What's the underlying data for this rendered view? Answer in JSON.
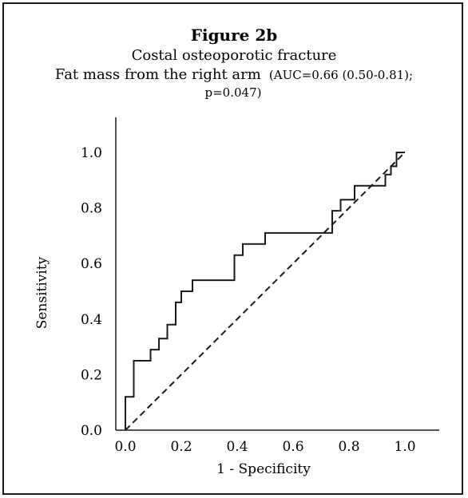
{
  "chart_data": {
    "type": "line",
    "title": "Figure 2b",
    "subtitle": "Costal osteoporotic fracture",
    "subtitle2_main": "Fat mass from the right arm",
    "subtitle2_stats_a": "(AUC=0.66 (0.50-0.81);",
    "subtitle2_stats_b": "p=0.047)",
    "xlabel": "1 - Specificity",
    "ylabel": "Sensitivity",
    "xlim": [
      0,
      1
    ],
    "ylim": [
      0,
      1
    ],
    "x_ticks": [
      "0.0",
      "0.2",
      "0.4",
      "0.6",
      "0.8",
      "1.0"
    ],
    "y_ticks": [
      "0.0",
      "0.2",
      "0.4",
      "0.6",
      "0.8",
      "1.0"
    ],
    "grid": false,
    "series": [
      {
        "style": "solid",
        "x": [
          0.0,
          0.0,
          0.03,
          0.03,
          0.09,
          0.09,
          0.12,
          0.12,
          0.15,
          0.15,
          0.18,
          0.18,
          0.2,
          0.2,
          0.24,
          0.24,
          0.39,
          0.39,
          0.42,
          0.42,
          0.5,
          0.5,
          0.74,
          0.74,
          0.77,
          0.77,
          0.82,
          0.82,
          0.93,
          0.93,
          0.95,
          0.95,
          0.97,
          0.97,
          1.0
        ],
        "y": [
          0.0,
          0.12,
          0.12,
          0.25,
          0.25,
          0.29,
          0.29,
          0.33,
          0.33,
          0.38,
          0.38,
          0.46,
          0.46,
          0.5,
          0.5,
          0.54,
          0.54,
          0.63,
          0.63,
          0.67,
          0.67,
          0.71,
          0.71,
          0.79,
          0.79,
          0.83,
          0.83,
          0.88,
          0.88,
          0.92,
          0.92,
          0.95,
          0.95,
          1.0,
          1.0
        ]
      },
      {
        "style": "dashed",
        "x": [
          0,
          1
        ],
        "y": [
          0,
          1
        ]
      }
    ]
  }
}
